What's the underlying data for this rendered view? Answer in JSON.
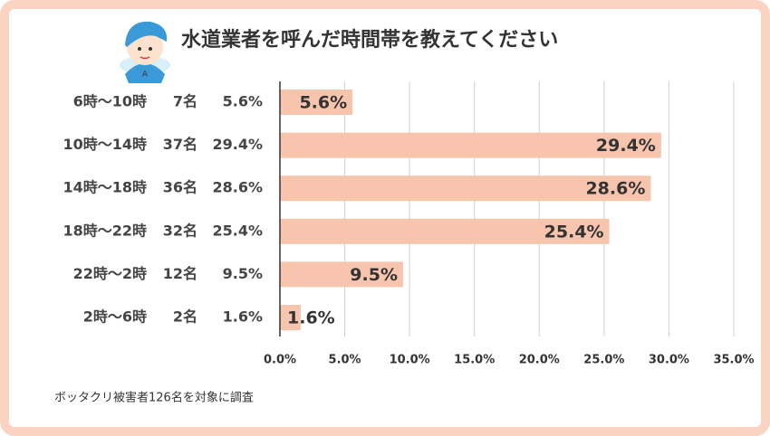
{
  "chart_data": {
    "type": "bar",
    "orientation": "horizontal",
    "title": "水道業者を呼んだ時間帯を教えてください",
    "categories": [
      "6時〜10時",
      "10時〜14時",
      "14時〜18時",
      "18時〜22時",
      "22時〜2時",
      "2時〜6時"
    ],
    "counts": [
      7,
      37,
      36,
      32,
      12,
      2
    ],
    "count_labels": [
      "7名",
      "37名",
      "36名",
      "32名",
      "12名",
      "2名"
    ],
    "values": [
      5.6,
      29.4,
      28.6,
      25.4,
      9.5,
      1.6
    ],
    "value_labels": [
      "5.6%",
      "29.4%",
      "28.6%",
      "25.4%",
      "9.5%",
      "1.6%"
    ],
    "color": "#f7c5ae",
    "xlim": [
      0,
      35
    ],
    "xticks": [
      {
        "value": 0,
        "label": "0.0%"
      },
      {
        "value": 5,
        "label": "5.0%"
      },
      {
        "value": 10,
        "label": "10.0%"
      },
      {
        "value": 15,
        "label": "15.0%"
      },
      {
        "value": 20,
        "label": "20.0%"
      },
      {
        "value": 25,
        "label": "25.0%"
      },
      {
        "value": 30,
        "label": "30.0%"
      },
      {
        "value": 35,
        "label": "35.0%"
      }
    ],
    "grid": true,
    "footnote": "ボッタクリ被害者126名を対象に調査"
  }
}
